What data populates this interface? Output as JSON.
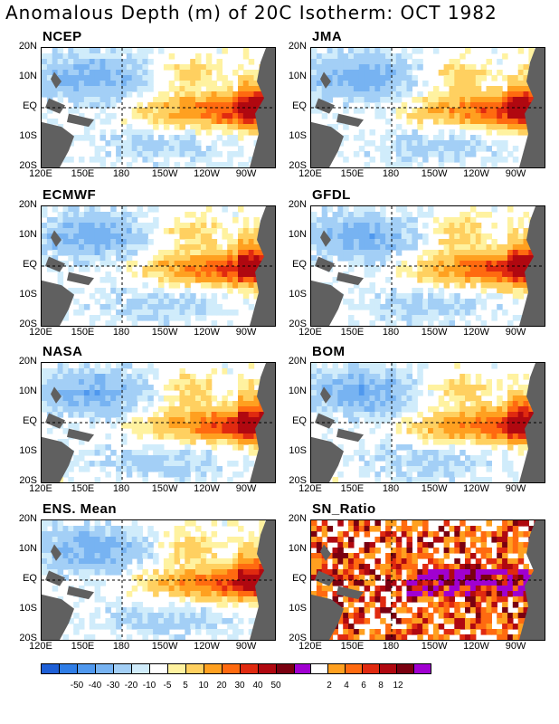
{
  "title": "Anomalous Depth (m) of 20C Isotherm: OCT 1982",
  "panels": [
    {
      "label": "NCEP"
    },
    {
      "label": "JMA"
    },
    {
      "label": "ECMWF"
    },
    {
      "label": "GFDL"
    },
    {
      "label": "NASA"
    },
    {
      "label": "BOM"
    },
    {
      "label": "ENS. Mean"
    },
    {
      "label": "SN_Ratio"
    }
  ],
  "axes": {
    "lat_labels": [
      "20N",
      "10N",
      "EQ",
      "10S",
      "20S"
    ],
    "lon_labels": [
      "120E",
      "150E",
      "180",
      "150W",
      "120W",
      "90W"
    ]
  },
  "colorbar_anomaly": {
    "colors": [
      "#1e5fd6",
      "#2f7de6",
      "#4f98ee",
      "#77b3f2",
      "#a3cff6",
      "#d0ecfb",
      "#ffffff",
      "#fff2a0",
      "#ffd060",
      "#ffa020",
      "#ff6a10",
      "#e02a10",
      "#b00810",
      "#7a0010",
      "#a000d0"
    ],
    "labels": [
      "-50",
      "-40",
      "-30",
      "-20",
      "-10",
      "-5",
      "5",
      "10",
      "20",
      "30",
      "40",
      "50"
    ]
  },
  "colorbar_snr": {
    "colors": [
      "#ffffff",
      "#ffa020",
      "#ff6a10",
      "#e02a10",
      "#b00810",
      "#7a0010",
      "#a000d0"
    ],
    "labels": [
      "2",
      "4",
      "6",
      "8",
      "12"
    ]
  },
  "land_color": "#606060"
}
